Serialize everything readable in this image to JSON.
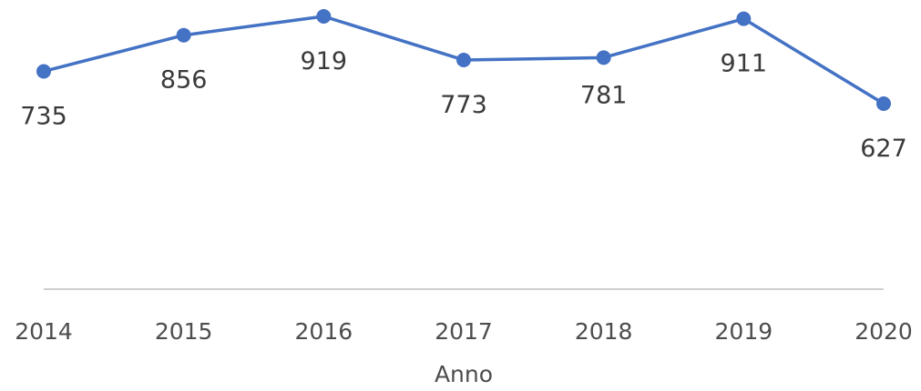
{
  "chart_data": {
    "type": "line",
    "title": "",
    "xlabel": "Anno",
    "ylabel": "",
    "categories": [
      "2014",
      "2015",
      "2016",
      "2017",
      "2018",
      "2019",
      "2020"
    ],
    "series": [
      {
        "values": [
          735,
          856,
          919,
          773,
          781,
          911,
          627
        ],
        "color": "#4472C4"
      }
    ],
    "data_labels": [
      "735",
      "856",
      "919",
      "773",
      "781",
      "911",
      "627"
    ],
    "data_label_position": [
      "below",
      "below",
      "below",
      "below",
      "above",
      "below",
      "below"
    ],
    "axis_color": "#bfbfbf",
    "grid": false,
    "legend": "none"
  }
}
